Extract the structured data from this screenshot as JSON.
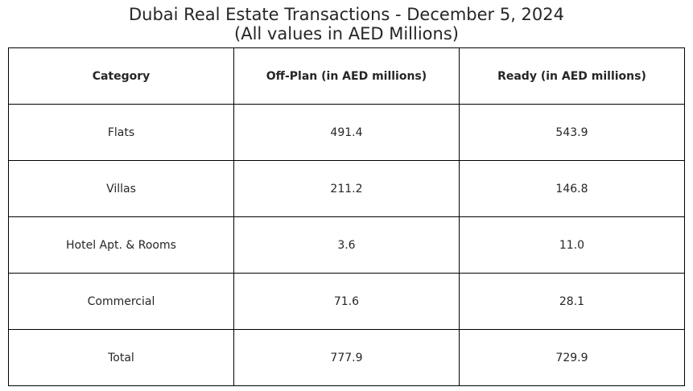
{
  "chart_data": {
    "type": "table",
    "title": "Dubai Real Estate Transactions - December 5, 2024",
    "subtitle": "(All values in AED Millions)",
    "columns": [
      "Category",
      "Off-Plan (in AED millions)",
      "Ready (in AED millions)"
    ],
    "rows": [
      [
        "Flats",
        "491.4",
        "543.9"
      ],
      [
        "Villas",
        "211.2",
        "146.8"
      ],
      [
        "Hotel Apt. & Rooms",
        "3.6",
        "11.0"
      ],
      [
        "Commercial",
        "71.6",
        "28.1"
      ],
      [
        "Total",
        "777.9",
        "729.9"
      ]
    ]
  }
}
